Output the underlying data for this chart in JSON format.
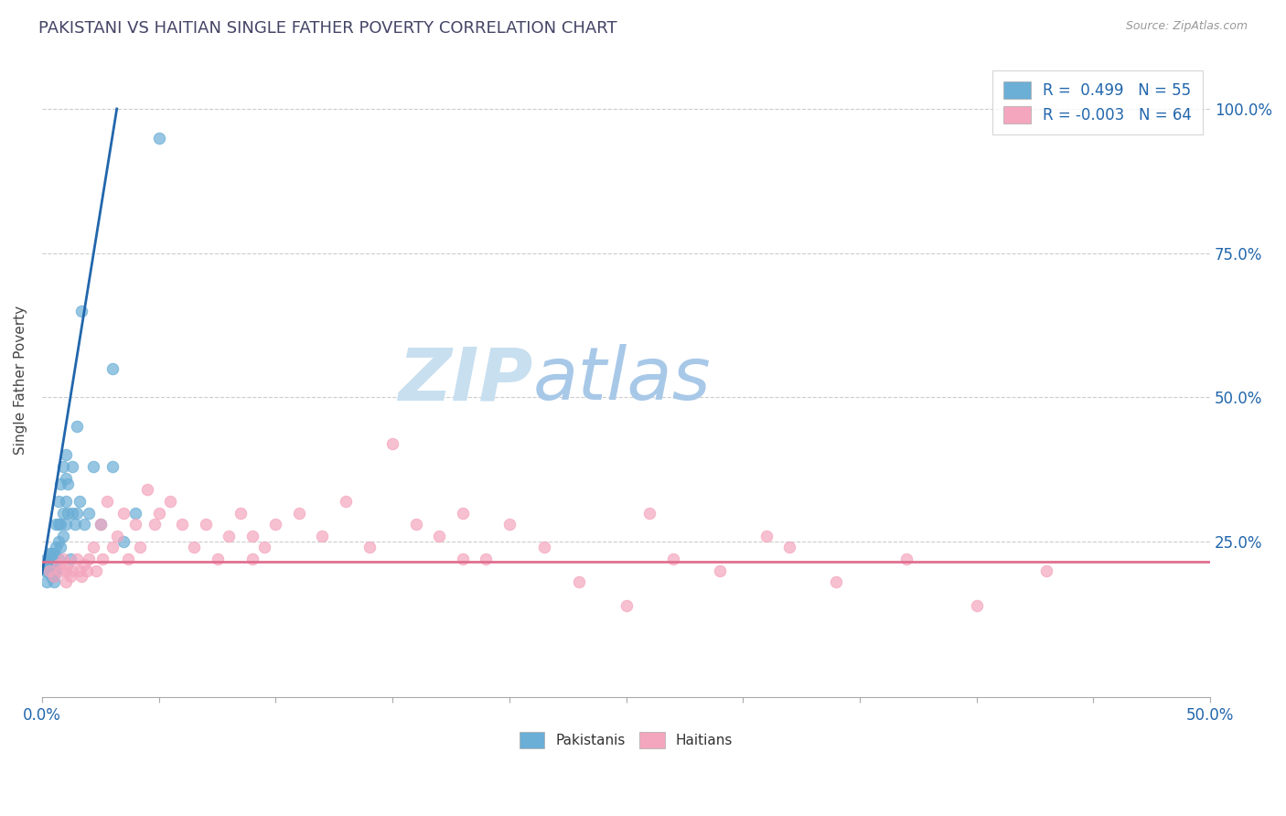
{
  "title": "PAKISTANI VS HAITIAN SINGLE FATHER POVERTY CORRELATION CHART",
  "source_text": "Source: ZipAtlas.com",
  "ylabel": "Single Father Poverty",
  "xlim": [
    0.0,
    0.5
  ],
  "ylim": [
    -0.02,
    1.08
  ],
  "xtick_positions": [
    0.0,
    0.05,
    0.1,
    0.15,
    0.2,
    0.25,
    0.3,
    0.35,
    0.4,
    0.45,
    0.5
  ],
  "xticklabels": [
    "0.0%",
    "",
    "",
    "",
    "",
    "",
    "",
    "",
    "",
    "",
    "50.0%"
  ],
  "ytick_positions": [
    0.25,
    0.5,
    0.75,
    1.0
  ],
  "yticklabels_right": [
    "25.0%",
    "50.0%",
    "75.0%",
    "100.0%"
  ],
  "blue_R": "0.499",
  "blue_N": "55",
  "pink_R": "-0.003",
  "pink_N": "64",
  "blue_color": "#6baed6",
  "pink_color": "#f4a6be",
  "trendline_blue_color": "#2166ac",
  "trendline_pink_color": "#e07090",
  "legend_label_blue": "Pakistanis",
  "legend_label_pink": "Haitians",
  "watermark_ZIP_color": "#c8dff0",
  "watermark_atlas_color": "#a8c8e8",
  "blue_x": [
    0.001,
    0.002,
    0.002,
    0.002,
    0.003,
    0.003,
    0.003,
    0.003,
    0.004,
    0.004,
    0.004,
    0.004,
    0.004,
    0.005,
    0.005,
    0.005,
    0.005,
    0.005,
    0.005,
    0.006,
    0.006,
    0.006,
    0.007,
    0.007,
    0.007,
    0.007,
    0.008,
    0.008,
    0.008,
    0.009,
    0.009,
    0.009,
    0.01,
    0.01,
    0.01,
    0.01,
    0.011,
    0.011,
    0.012,
    0.013,
    0.013,
    0.014,
    0.015,
    0.015,
    0.016,
    0.017,
    0.018,
    0.02,
    0.022,
    0.025,
    0.03,
    0.035,
    0.04,
    0.05,
    0.03
  ],
  "blue_y": [
    0.2,
    0.22,
    0.18,
    0.2,
    0.2,
    0.21,
    0.22,
    0.23,
    0.19,
    0.2,
    0.21,
    0.22,
    0.23,
    0.18,
    0.19,
    0.2,
    0.21,
    0.22,
    0.23,
    0.2,
    0.24,
    0.28,
    0.22,
    0.25,
    0.28,
    0.32,
    0.24,
    0.28,
    0.35,
    0.26,
    0.3,
    0.38,
    0.28,
    0.32,
    0.36,
    0.4,
    0.3,
    0.35,
    0.22,
    0.3,
    0.38,
    0.28,
    0.3,
    0.45,
    0.32,
    0.65,
    0.28,
    0.3,
    0.38,
    0.28,
    0.55,
    0.25,
    0.3,
    0.95,
    0.38
  ],
  "pink_x": [
    0.003,
    0.005,
    0.007,
    0.008,
    0.009,
    0.01,
    0.01,
    0.011,
    0.012,
    0.013,
    0.015,
    0.016,
    0.017,
    0.018,
    0.019,
    0.02,
    0.022,
    0.023,
    0.025,
    0.026,
    0.028,
    0.03,
    0.032,
    0.035,
    0.037,
    0.04,
    0.042,
    0.045,
    0.048,
    0.05,
    0.055,
    0.06,
    0.065,
    0.07,
    0.075,
    0.08,
    0.085,
    0.09,
    0.095,
    0.1,
    0.11,
    0.12,
    0.13,
    0.14,
    0.15,
    0.16,
    0.17,
    0.18,
    0.19,
    0.2,
    0.215,
    0.23,
    0.25,
    0.27,
    0.29,
    0.31,
    0.34,
    0.37,
    0.4,
    0.43,
    0.32,
    0.26,
    0.18,
    0.09
  ],
  "pink_y": [
    0.2,
    0.19,
    0.21,
    0.2,
    0.22,
    0.18,
    0.2,
    0.21,
    0.19,
    0.2,
    0.22,
    0.2,
    0.19,
    0.21,
    0.2,
    0.22,
    0.24,
    0.2,
    0.28,
    0.22,
    0.32,
    0.24,
    0.26,
    0.3,
    0.22,
    0.28,
    0.24,
    0.34,
    0.28,
    0.3,
    0.32,
    0.28,
    0.24,
    0.28,
    0.22,
    0.26,
    0.3,
    0.22,
    0.24,
    0.28,
    0.3,
    0.26,
    0.32,
    0.24,
    0.42,
    0.28,
    0.26,
    0.3,
    0.22,
    0.28,
    0.24,
    0.18,
    0.14,
    0.22,
    0.2,
    0.26,
    0.18,
    0.22,
    0.14,
    0.2,
    0.24,
    0.3,
    0.22,
    0.26
  ],
  "trendline_blue_x0": 0.0,
  "trendline_blue_x1": 0.032,
  "trendline_blue_y0": 0.195,
  "trendline_blue_y1": 1.0,
  "trendline_pink_y": 0.215
}
